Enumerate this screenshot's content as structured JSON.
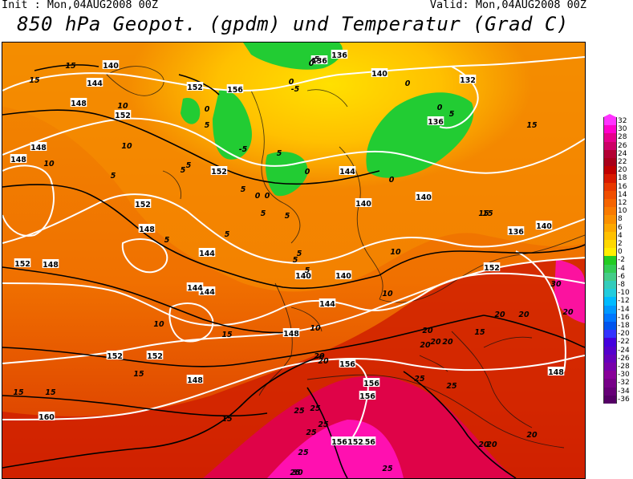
{
  "header": {
    "init": "Init : Mon,04AUG2008 00Z",
    "valid": "Valid: Mon,04AUG2008 00Z",
    "title": "850 hPa Geopot. (gpdm) und Temperatur (Grad C)"
  },
  "legend": {
    "values": [
      "32",
      "30",
      "28",
      "26",
      "24",
      "22",
      "20",
      "18",
      "16",
      "14",
      "12",
      "10",
      "8",
      "6",
      "4",
      "2",
      "0",
      "-2",
      "-4",
      "-6",
      "-8",
      "-10",
      "-12",
      "-14",
      "-16",
      "-18",
      "-20",
      "-22",
      "-24",
      "-26",
      "-28",
      "-30",
      "-32",
      "-34",
      "-36"
    ],
    "colors": [
      "#ff33ff",
      "#ff00cc",
      "#e6008c",
      "#cc0066",
      "#b30033",
      "#a8001a",
      "#c00000",
      "#d81a00",
      "#e83800",
      "#f04e00",
      "#f56400",
      "#f87a00",
      "#fa9000",
      "#fca800",
      "#ffc000",
      "#ffd800",
      "#ffee00",
      "#22cc22",
      "#33cc55",
      "#44cc88",
      "#33ccbb",
      "#22ccdd",
      "#00bbff",
      "#0099ff",
      "#0077ff",
      "#0055ee",
      "#3333ff",
      "#4400dd",
      "#5500cc",
      "#6600bb",
      "#7700aa",
      "#880099",
      "#770088",
      "#660077",
      "#550066"
    ]
  },
  "map_labels": {
    "geopotential": [
      "136",
      "140",
      "132",
      "144",
      "148",
      "152",
      "156",
      "152",
      "136",
      "136",
      "144",
      "152",
      "148",
      "152",
      "148",
      "144",
      "140",
      "140",
      "152",
      "136",
      "140",
      "144",
      "148",
      "152",
      "148",
      "156",
      "140",
      "152",
      "144",
      "140",
      "152",
      "148",
      "156",
      "156",
      "156",
      "156",
      "152",
      "160",
      "148",
      "148",
      "144",
      "140"
    ],
    "temperature": [
      "15",
      "15",
      "10",
      "10",
      "10",
      "5",
      "5",
      "5",
      "0",
      "0",
      "0",
      "-5",
      "0",
      "5",
      "-5",
      "5",
      "0",
      "0",
      "0",
      "5",
      "0",
      "5",
      "5",
      "5",
      "5",
      "5",
      "5",
      "5",
      "10",
      "10",
      "15",
      "15",
      "15",
      "10",
      "15",
      "15",
      "20",
      "20",
      "20",
      "20",
      "20",
      "20",
      "20",
      "20",
      "25",
      "25",
      "25",
      "25",
      "20",
      "25",
      "25",
      "15",
      "15",
      "20",
      "20",
      "15",
      "25",
      "25",
      "30",
      "30",
      "25",
      "15",
      "10",
      "5",
      "0",
      "-5",
      "20"
    ]
  }
}
